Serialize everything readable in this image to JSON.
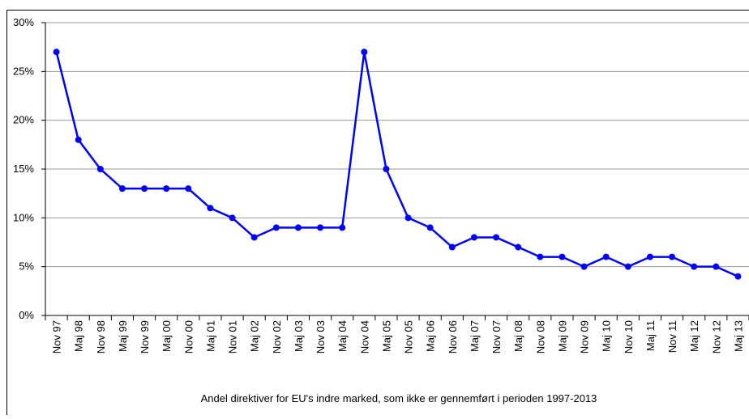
{
  "chart_data": {
    "type": "line",
    "caption": "Andel direktiver for EU's indre marked, som ikke er gennemført i perioden 1997-2013",
    "categories": [
      "Nov 97",
      "Maj 98",
      "Nov 98",
      "Maj 99",
      "Nov 99",
      "Maj 00",
      "Nov 00",
      "Maj 01",
      "Nov 01",
      "Maj 02",
      "Nov 02",
      "Maj 03",
      "Nov 03",
      "Maj 04",
      "Nov 04",
      "Maj 05",
      "Nov 05",
      "Maj 06",
      "Nov 06",
      "Maj 07",
      "Nov 07",
      "Maj 08",
      "Nov 08",
      "Maj 09",
      "Nov 09",
      "Maj 10",
      "Nov 10",
      "Maj 11",
      "Nov 11",
      "Maj 12",
      "Nov 12",
      "Maj 13"
    ],
    "series": [
      {
        "color": "#0000ff",
        "values": [
          27,
          18,
          15,
          13,
          13,
          13,
          13,
          11,
          10,
          8,
          9,
          9,
          9,
          9,
          27,
          15,
          10,
          9,
          7,
          8,
          8,
          7,
          6,
          6,
          5,
          6,
          5,
          6,
          6,
          5,
          5,
          4
        ]
      }
    ],
    "ylim": [
      0,
      30
    ],
    "yticks": [
      {
        "value": 0,
        "label": "0%"
      },
      {
        "value": 5,
        "label": "5%"
      },
      {
        "value": 10,
        "label": "10%"
      },
      {
        "value": 15,
        "label": "15%"
      },
      {
        "value": 20,
        "label": "20%"
      },
      {
        "value": 25,
        "label": "25%"
      },
      {
        "value": 30,
        "label": "30%"
      }
    ],
    "grid": true
  }
}
